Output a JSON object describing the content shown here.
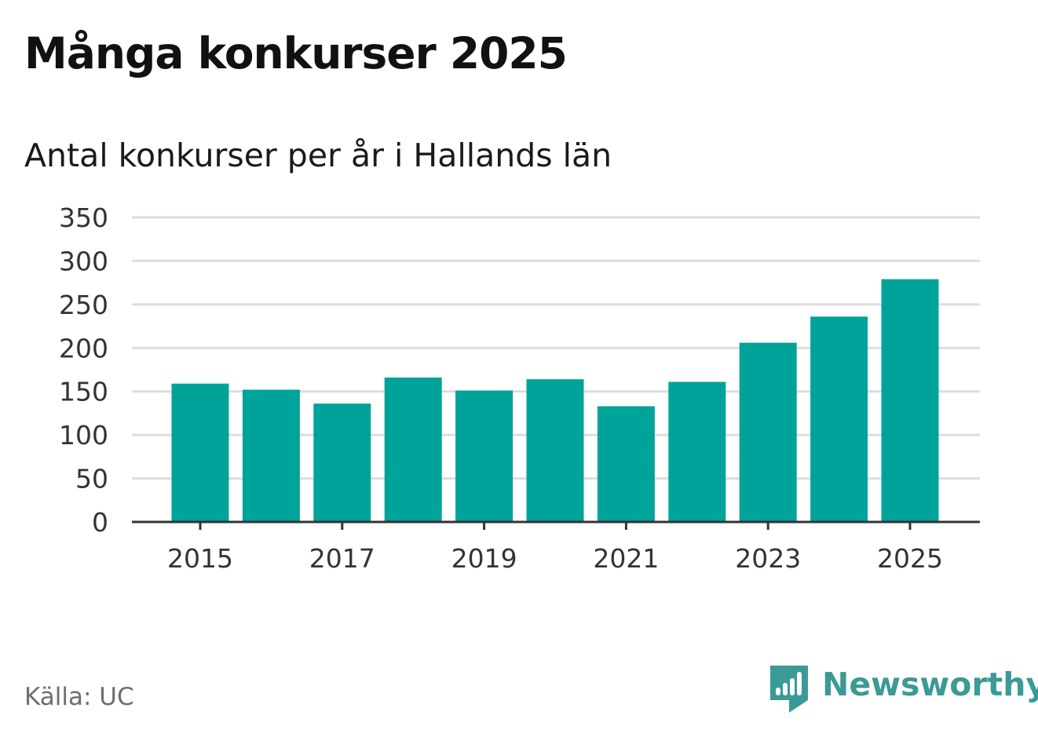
{
  "header": {
    "title": "Många konkurser 2025",
    "subtitle": "Antal konkurser per år i Hallands län"
  },
  "footer": {
    "source": "Källa: UC",
    "brand": "Newsworthy"
  },
  "colors": {
    "bar": "#00a39a",
    "grid": "#dddddd",
    "axis": "#333333",
    "brand": "#3a9a96"
  },
  "chart_data": {
    "type": "bar",
    "title": "Många konkurser 2025",
    "subtitle": "Antal konkurser per år i Hallands län",
    "xlabel": "",
    "ylabel": "",
    "categories": [
      "2015",
      "2016",
      "2017",
      "2018",
      "2019",
      "2020",
      "2021",
      "2022",
      "2023",
      "2024",
      "2025"
    ],
    "values": [
      159,
      152,
      136,
      166,
      151,
      164,
      133,
      161,
      206,
      236,
      279
    ],
    "x_tick_labels": [
      "2015",
      "2017",
      "2019",
      "2021",
      "2023",
      "2025"
    ],
    "y_ticks": [
      0,
      50,
      100,
      150,
      200,
      250,
      300,
      350
    ],
    "ylim": [
      0,
      350
    ],
    "grid": true,
    "legend": "none"
  }
}
